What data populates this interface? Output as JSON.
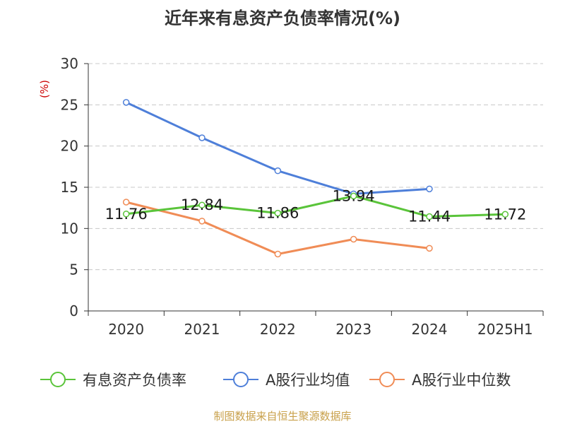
{
  "chart_data": {
    "type": "line",
    "title": "近年来有息资产负债率情况(%)",
    "ylabel": "(%)",
    "xlabel": "",
    "categories": [
      "2020",
      "2021",
      "2022",
      "2023",
      "2024",
      "2025H1"
    ],
    "ylim": [
      0,
      30
    ],
    "yticks": [
      0,
      5,
      10,
      15,
      20,
      25,
      30
    ],
    "grid": "horizontal-dashed",
    "legend_position": "bottom",
    "series": [
      {
        "name": "有息资产负债率",
        "color": "#5ac43a",
        "values": [
          11.76,
          12.84,
          11.86,
          13.94,
          11.44,
          11.72
        ],
        "labels": [
          "11.76",
          "12.84",
          "11.86",
          "13.94",
          "11.44",
          "11.72"
        ]
      },
      {
        "name": "A股行业均值",
        "color": "#4e7fd9",
        "values": [
          25.3,
          21.0,
          17.0,
          14.2,
          14.8,
          null
        ]
      },
      {
        "name": "A股行业中位数",
        "color": "#f08c56",
        "values": [
          13.2,
          10.9,
          6.9,
          8.7,
          7.6,
          null
        ]
      }
    ]
  },
  "source": "制图数据来自恒生聚源数据库"
}
